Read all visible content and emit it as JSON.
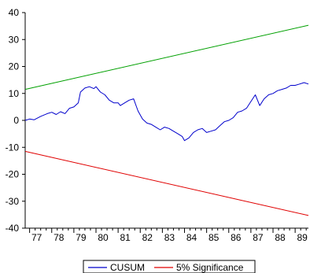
{
  "chart_data": {
    "type": "line",
    "title": "",
    "xlabel": "",
    "ylabel": "",
    "xlim": [
      1976.8,
      1989.6
    ],
    "ylim": [
      -40,
      40
    ],
    "x_tick_labels": [
      "77",
      "78",
      "79",
      "80",
      "81",
      "82",
      "83",
      "84",
      "85",
      "86",
      "87",
      "88",
      "89"
    ],
    "x_tick_values": [
      1977,
      1978,
      1979,
      1980,
      1981,
      1982,
      1983,
      1984,
      1985,
      1986,
      1987,
      1988,
      1989
    ],
    "y_tick_labels": [
      "-40",
      "-30",
      "-20",
      "-10",
      "0",
      "10",
      "20",
      "30",
      "40"
    ],
    "y_tick_values": [
      -40,
      -30,
      -20,
      -10,
      0,
      10,
      20,
      30,
      40
    ],
    "grid": false,
    "legend": {
      "position": "bottom-center",
      "entries": [
        {
          "label": "CUSUM",
          "color": "#0000cc"
        },
        {
          "label": "5% Significance",
          "color": "#e00000"
        }
      ]
    },
    "series": [
      {
        "name": "CUSUM",
        "color": "#0000cc",
        "x": [
          1976.8,
          1977.0,
          1977.2,
          1977.5,
          1977.8,
          1978.0,
          1978.2,
          1978.4,
          1978.6,
          1978.8,
          1979.0,
          1979.2,
          1979.3,
          1979.5,
          1979.7,
          1979.9,
          1980.0,
          1980.2,
          1980.4,
          1980.6,
          1980.8,
          1981.0,
          1981.1,
          1981.3,
          1981.5,
          1981.7,
          1981.9,
          1982.1,
          1982.3,
          1982.5,
          1982.7,
          1982.9,
          1983.1,
          1983.3,
          1983.5,
          1983.7,
          1983.9,
          1984.0,
          1984.2,
          1984.4,
          1984.6,
          1984.8,
          1985.0,
          1985.2,
          1985.4,
          1985.6,
          1985.8,
          1986.0,
          1986.2,
          1986.4,
          1986.6,
          1986.8,
          1987.0,
          1987.2,
          1987.4,
          1987.6,
          1987.8,
          1988.0,
          1988.2,
          1988.4,
          1988.6,
          1988.8,
          1989.0,
          1989.2,
          1989.4,
          1989.6
        ],
        "values": [
          0.0,
          0.5,
          0.2,
          1.5,
          2.5,
          3.0,
          2.2,
          3.2,
          2.5,
          4.5,
          5.0,
          6.5,
          10.5,
          12.0,
          12.5,
          11.8,
          12.5,
          10.5,
          9.5,
          7.5,
          6.5,
          6.5,
          5.5,
          6.5,
          7.5,
          8.0,
          3.5,
          0.5,
          -1.0,
          -1.5,
          -2.5,
          -3.5,
          -2.5,
          -3.0,
          -4.0,
          -5.0,
          -6.0,
          -7.5,
          -6.5,
          -4.5,
          -3.5,
          -3.0,
          -4.5,
          -4.0,
          -3.5,
          -2.0,
          -0.5,
          0.0,
          1.0,
          3.0,
          3.5,
          4.5,
          7.0,
          9.5,
          5.5,
          8.0,
          9.5,
          10.0,
          11.0,
          11.5,
          12.0,
          13.0,
          13.0,
          13.5,
          14.0,
          13.5
        ]
      },
      {
        "name": "5% Significance",
        "color": "#e00000",
        "x": [
          1976.8,
          1989.6
        ],
        "values": [
          11.5,
          35.3
        ]
      },
      {
        "name": "5% Significance",
        "color": "#e00000",
        "x": [
          1976.8,
          1989.6
        ],
        "values": [
          -11.5,
          -35.3
        ]
      }
    ],
    "upper_band_color": "#00a000",
    "lower_band_color": "#e00000"
  }
}
